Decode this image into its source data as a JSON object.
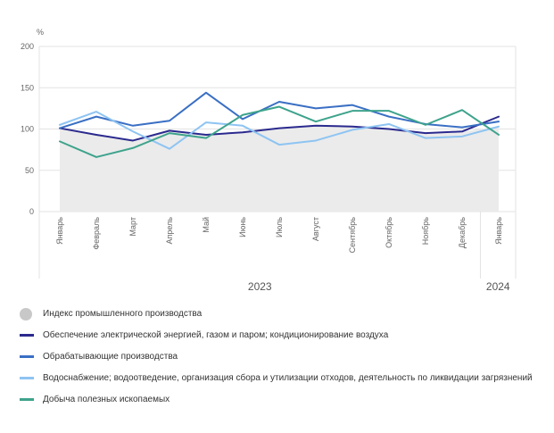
{
  "chart_data": {
    "type": "line",
    "unit_label": "%",
    "ylim": [
      0,
      200
    ],
    "yticks": [
      0,
      50,
      100,
      150,
      200
    ],
    "categories": [
      "Январь",
      "Февраль",
      "Март",
      "Апрель",
      "Май",
      "Июнь",
      "Июль",
      "Август",
      "Сентябрь",
      "Октябрь",
      "Ноябрь",
      "Декабрь",
      "Январь"
    ],
    "years": [
      {
        "label": "2023",
        "from": 0,
        "to": 11
      },
      {
        "label": "2024",
        "from": 12,
        "to": 12
      }
    ],
    "series": [
      {
        "name": "Индекс промышленного производства",
        "kind": "area",
        "color": "#c8c8c8",
        "values": [
          101,
          93,
          86,
          98,
          93,
          96,
          101,
          104,
          103,
          100,
          95,
          97,
          103
        ]
      },
      {
        "name": "Обеспечение электрической энергией, газом и паром; кондиционирование воздуха",
        "kind": "line",
        "color": "#2b2a8e",
        "values": [
          101,
          93,
          86,
          98,
          93,
          96,
          101,
          104,
          103,
          100,
          95,
          97,
          115
        ]
      },
      {
        "name": "Обрабатывающие производства",
        "kind": "line",
        "color": "#3a6fc4",
        "values": [
          101,
          115,
          104,
          110,
          144,
          112,
          133,
          125,
          129,
          115,
          106,
          102,
          109
        ]
      },
      {
        "name": "Водоснабжение; водоотведение, организация сбора и утилизации отходов, деятельность по ликвидации загрязнений",
        "kind": "line",
        "color": "#8ec4f2",
        "values": [
          105,
          121,
          97,
          76,
          108,
          104,
          81,
          86,
          99,
          106,
          89,
          91,
          103
        ]
      },
      {
        "name": "Добыча полезных ископаемых",
        "kind": "line",
        "color": "#3ea38c",
        "values": [
          85,
          66,
          77,
          95,
          89,
          117,
          127,
          109,
          122,
          122,
          105,
          123,
          93
        ]
      }
    ]
  }
}
